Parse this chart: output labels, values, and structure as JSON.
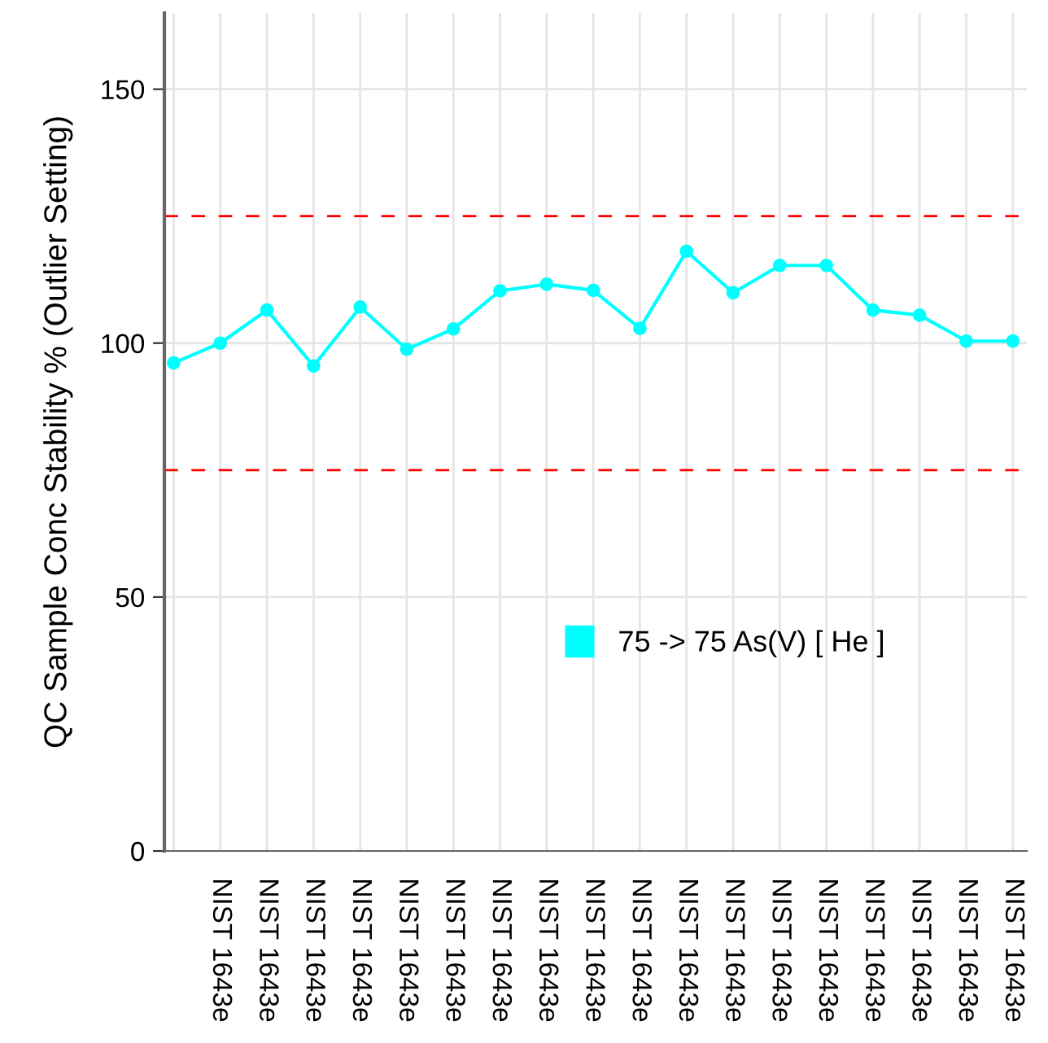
{
  "chart_data": {
    "type": "line",
    "ylabel": "QC Sample Conc Stability % (Outlier Setting)",
    "categories": [
      null,
      "NIST 1643e",
      "NIST 1643e",
      "NIST 1643e",
      "NIST 1643e",
      "NIST 1643e",
      "NIST 1643e",
      "NIST 1643e",
      "NIST 1643e",
      "NIST 1643e",
      "NIST 1643e",
      "NIST 1643e",
      "NIST 1643e",
      "NIST 1643e",
      "NIST 1643e",
      "NIST 1643e",
      "NIST 1643e",
      "NIST 1643e",
      "NIST 1643e"
    ],
    "series": [
      {
        "name": "75 -> 75 As(V) [ He ]",
        "color": "#00ffff",
        "values": [
          96.1,
          100,
          106.5,
          95.5,
          107.1,
          98.8,
          102.8,
          110.3,
          111.6,
          110.4,
          102.9,
          118.1,
          109.9,
          115.3,
          115.3,
          106.5,
          105.5,
          100.4,
          100.4
        ]
      }
    ],
    "ylim": [
      0,
      165
    ],
    "yticks": [
      0,
      50,
      100,
      150
    ],
    "grid": true,
    "marker": "circle",
    "line_style": "solid",
    "legend": "center",
    "ref_lines": [
      {
        "axis": "y",
        "value": 125,
        "color": "#ff0000",
        "line_style": "dashed"
      },
      {
        "axis": "y",
        "value": 75,
        "color": "#ff0000",
        "line_style": "dashed"
      }
    ]
  }
}
